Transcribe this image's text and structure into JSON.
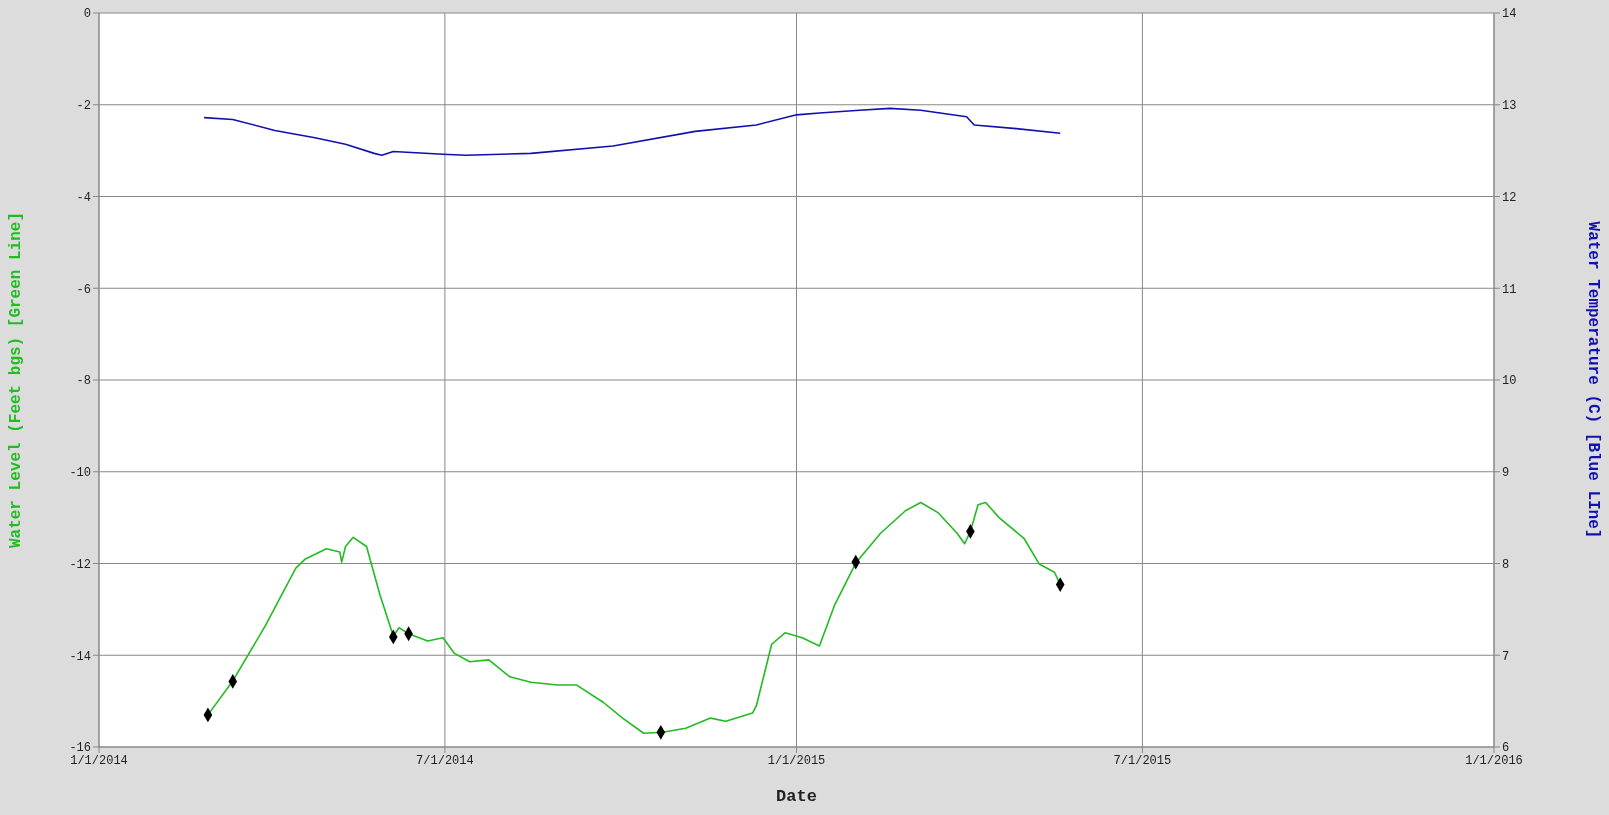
{
  "chart_data": {
    "type": "line",
    "xlabel": "Date",
    "ylabel": "Water Level (Feet bgs) [Green Line]",
    "y2label": "Water Temperature (C) [Blue LIne]",
    "xlim": [
      "2014-01-01",
      "2016-01-01"
    ],
    "xticks": [
      {
        "value": "2014-01-01",
        "label": "1/1/2014"
      },
      {
        "value": "2014-07-01",
        "label": "7/1/2014"
      },
      {
        "value": "2015-01-01",
        "label": "1/1/2015"
      },
      {
        "value": "2015-07-01",
        "label": "7/1/2015"
      },
      {
        "value": "2016-01-01",
        "label": "1/1/2016"
      }
    ],
    "ylim": [
      -16,
      0
    ],
    "yticks": [
      -16,
      -14,
      -12,
      -10,
      -8,
      -6,
      -4,
      -2,
      0
    ],
    "y2lim": [
      6,
      14
    ],
    "y2ticks": [
      6,
      7,
      8,
      9,
      10,
      11,
      12,
      13,
      14
    ],
    "grid": true,
    "legend": false,
    "series": [
      {
        "color": "#22bb22",
        "marker": "none",
        "x": [
          "2014-02-27",
          "2014-03-12",
          "2014-03-29",
          "2014-04-14",
          "2014-04-19",
          "2014-04-30",
          "2014-05-07",
          "2014-05-08",
          "2014-05-10",
          "2014-05-14",
          "2014-05-21",
          "2014-05-28",
          "2014-06-04",
          "2014-06-07",
          "2014-06-12",
          "2014-06-22",
          "2014-06-30",
          "2014-07-06",
          "2014-07-14",
          "2014-07-24",
          "2014-08-04",
          "2014-08-15",
          "2014-08-29",
          "2014-09-08",
          "2014-09-22",
          "2014-10-02",
          "2014-10-13",
          "2014-10-23",
          "2014-11-04",
          "2014-11-17",
          "2014-11-25",
          "2014-12-09",
          "2014-12-11",
          "2014-12-19",
          "2014-12-26",
          "2015-01-04",
          "2015-01-13",
          "2015-01-21",
          "2015-02-01",
          "2015-02-14",
          "2015-02-27",
          "2015-03-07",
          "2015-03-16",
          "2015-03-26",
          "2015-03-30",
          "2015-04-02",
          "2015-04-06",
          "2015-04-10",
          "2015-04-17",
          "2015-04-30",
          "2015-05-08",
          "2015-05-16",
          "2015-05-19"
        ],
        "values": [
          -15.3,
          -14.56,
          -13.36,
          -12.1,
          -11.9,
          -11.68,
          -11.75,
          -11.97,
          -11.63,
          -11.43,
          -11.63,
          -12.68,
          -13.58,
          -13.4,
          -13.53,
          -13.69,
          -13.62,
          -13.96,
          -14.14,
          -14.1,
          -14.47,
          -14.59,
          -14.65,
          -14.65,
          -15.03,
          -15.37,
          -15.7,
          -15.68,
          -15.59,
          -15.37,
          -15.44,
          -15.26,
          -15.1,
          -13.76,
          -13.51,
          -13.62,
          -13.8,
          -12.9,
          -11.99,
          -11.34,
          -10.85,
          -10.67,
          -10.89,
          -11.34,
          -11.57,
          -11.3,
          -10.72,
          -10.67,
          -11.0,
          -11.45,
          -12.01,
          -12.19,
          -12.46
        ]
      },
      {
        "color": "#1010b0",
        "marker": "none",
        "axis": "y2",
        "x": [
          "2014-02-25",
          "2014-03-12",
          "2014-04-03",
          "2014-04-24",
          "2014-05-10",
          "2014-05-25",
          "2014-05-29",
          "2014-06-04",
          "2014-06-30",
          "2014-07-12",
          "2014-08-15",
          "2014-09-27",
          "2014-11-09",
          "2014-12-11",
          "2015-01-01",
          "2015-01-13",
          "2015-02-03",
          "2015-02-19",
          "2015-03-07",
          "2015-03-31",
          "2015-04-04",
          "2015-04-26",
          "2015-05-19"
        ],
        "values": [
          12.86,
          12.84,
          12.72,
          12.64,
          12.57,
          12.47,
          12.45,
          12.49,
          12.46,
          12.45,
          12.47,
          12.55,
          12.71,
          12.78,
          12.89,
          12.91,
          12.94,
          12.96,
          12.94,
          12.87,
          12.78,
          12.74,
          12.69
        ]
      },
      {
        "type": "scatter",
        "color": "#000000",
        "marker": "diamond",
        "x": [
          "2014-02-27",
          "2014-03-12",
          "2014-06-04",
          "2014-06-12",
          "2014-10-22",
          "2015-02-01",
          "2015-04-02",
          "2015-05-19"
        ],
        "values": [
          -15.3,
          -14.57,
          -13.6,
          -13.53,
          -15.68,
          -11.97,
          -11.3,
          -12.46
        ]
      }
    ]
  }
}
